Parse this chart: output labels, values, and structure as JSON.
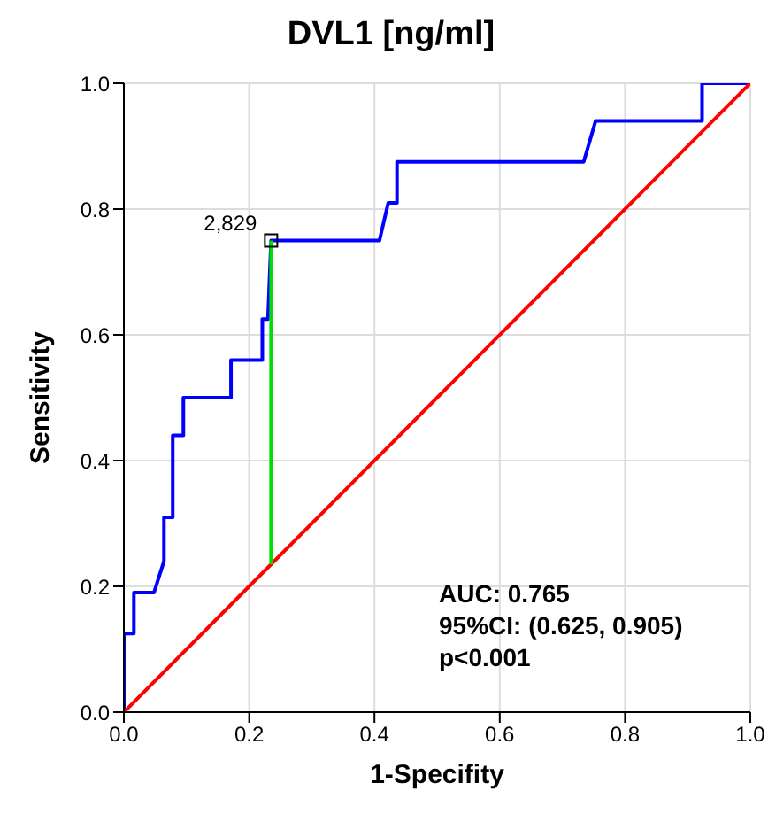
{
  "chart_data": {
    "type": "line",
    "title": "DVL1 [ng/ml]",
    "xlabel": "1-Specifity",
    "ylabel": "Sensitivity",
    "xlim": [
      0,
      1
    ],
    "ylim": [
      0,
      1
    ],
    "xticks": [
      {
        "value": 0,
        "label": "0.0"
      },
      {
        "value": 0.2,
        "label": "0.2"
      },
      {
        "value": 0.4,
        "label": "0.4"
      },
      {
        "value": 0.6,
        "label": "0.6"
      },
      {
        "value": 0.8,
        "label": "0.8"
      },
      {
        "value": 1,
        "label": "1.0"
      }
    ],
    "yticks": [
      {
        "value": 0,
        "label": "0.0"
      },
      {
        "value": 0.2,
        "label": "0.2"
      },
      {
        "value": 0.4,
        "label": "0.4"
      },
      {
        "value": 0.6,
        "label": "0.6"
      },
      {
        "value": 0.8,
        "label": "0.8"
      },
      {
        "value": 1,
        "label": "1.0"
      }
    ],
    "grid": true,
    "series": [
      {
        "color": "#0000ff",
        "x": [
          0,
          0,
          0.016,
          0.016,
          0.048,
          0.064,
          0.064,
          0.078,
          0.078,
          0.095,
          0.095,
          0.171,
          0.171,
          0.221,
          0.221,
          0.23,
          0.235,
          0.408,
          0.422,
          0.436,
          0.436,
          0.734,
          0.753,
          0.923,
          0.923,
          1
        ],
        "values": [
          0,
          0.125,
          0.125,
          0.19,
          0.19,
          0.24,
          0.31,
          0.31,
          0.44,
          0.44,
          0.5,
          0.5,
          0.56,
          0.56,
          0.625,
          0.625,
          0.75,
          0.75,
          0.81,
          0.81,
          0.875,
          0.875,
          0.94,
          0.94,
          1,
          1
        ]
      },
      {
        "color": "#ff0000",
        "x": [
          0,
          1
        ],
        "values": [
          0,
          1
        ]
      },
      {
        "color": "#00dd00",
        "x": [
          0.235,
          0.235
        ],
        "values": [
          0.235,
          0.75
        ]
      },
      {
        "type": "scatter",
        "marker": "square",
        "color": "#000000",
        "x": [
          0.235
        ],
        "values": [
          0.75
        ]
      }
    ],
    "annotations": [
      {
        "text": "2,829",
        "x": 0.235,
        "y": 0.75
      },
      "AUC: 0.765",
      "95%CI: (0.625, 0.905)",
      "p<0.001"
    ]
  }
}
